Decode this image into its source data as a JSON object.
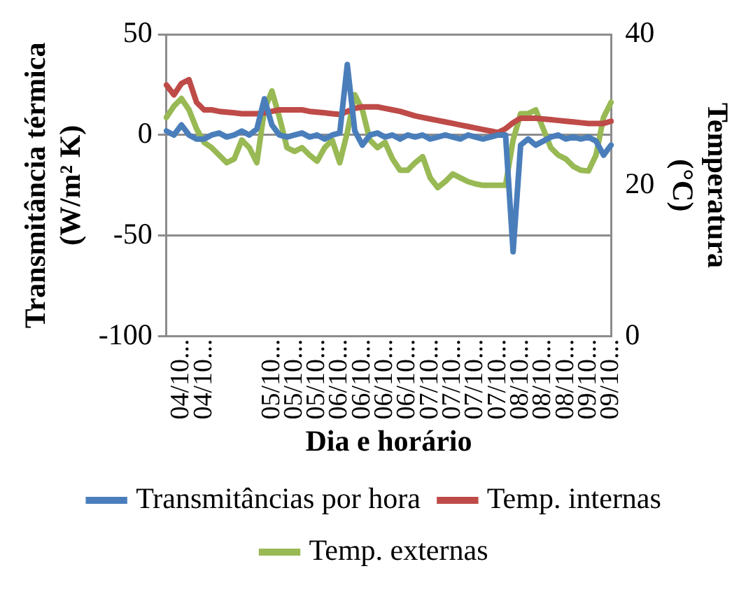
{
  "chart_data": {
    "type": "line",
    "xlabel": "Dia e horário",
    "ylabel": "Transmitância térmica (W/m² K)",
    "y2label": "Temperatura (°C)",
    "categories": [
      null,
      null,
      "04/10...",
      null,
      null,
      "04/10...",
      null,
      null,
      null,
      null,
      null,
      null,
      null,
      null,
      "05/10...",
      null,
      null,
      "05/10...",
      null,
      null,
      "05/10...",
      null,
      null,
      "06/10...",
      null,
      null,
      "06/10...",
      null,
      null,
      "06/10...",
      null,
      null,
      "06/10...",
      null,
      null,
      "07/10...",
      null,
      null,
      "07/10...",
      null,
      null,
      "07/10...",
      null,
      null,
      "07/10...",
      null,
      null,
      "08/10...",
      null,
      null,
      "08/10...",
      null,
      null,
      "08/10...",
      null,
      null,
      "09/10...",
      null,
      null,
      "09/10..."
    ],
    "series": [
      {
        "name": "Transmitâncias por hora",
        "color": "#4a7ebb",
        "values": [
          2,
          0,
          5,
          0,
          -2,
          -2,
          0,
          1,
          -1,
          0,
          2,
          0,
          3,
          18,
          5,
          0,
          -1,
          0,
          1,
          -1,
          0,
          -2,
          0,
          1,
          35,
          2,
          -5,
          0,
          1,
          -1,
          0,
          -2,
          0,
          -1,
          0,
          -2,
          -1,
          0,
          -1,
          -2,
          0,
          -1,
          -2,
          -1,
          0,
          0,
          -58,
          -5,
          -2,
          -5,
          -3,
          -1,
          0,
          -2,
          -1,
          -2,
          -1,
          -3,
          -10,
          -5
        ]
      },
      {
        "name": "Temp. internas",
        "color": "#be4b48",
        "axis": "y2",
        "values": [
          33.3,
          32,
          33.5,
          34,
          31,
          30,
          30,
          29.8,
          29.7,
          29.6,
          29.5,
          29.5,
          29.5,
          29.6,
          29.8,
          30,
          30,
          30,
          30,
          29.8,
          29.7,
          29.6,
          29.5,
          29.4,
          29.8,
          30.2,
          30.4,
          30.4,
          30.4,
          30.2,
          30,
          29.8,
          29.5,
          29.2,
          29,
          28.8,
          28.6,
          28.4,
          28.2,
          28,
          27.8,
          27.6,
          27.4,
          27.2,
          27,
          27.5,
          28.3,
          28.9,
          28.9,
          28.9,
          28.8,
          28.7,
          28.6,
          28.5,
          28.4,
          28.3,
          28.2,
          28.2,
          28.2,
          28.5
        ]
      },
      {
        "name": "Temp. externas",
        "color": "#98b954",
        "axis": "y2",
        "values": [
          29,
          30.5,
          31.5,
          30,
          27.5,
          25.7,
          25,
          24,
          23,
          23.5,
          26,
          25,
          23,
          30,
          32.5,
          29,
          25,
          24.5,
          25,
          24,
          23.2,
          25,
          26,
          23,
          27,
          32,
          30,
          26,
          25,
          25.7,
          23.5,
          22,
          22,
          23,
          23.8,
          21,
          19.7,
          20.5,
          21.5,
          21,
          20.5,
          20.2,
          20,
          20,
          20,
          20,
          26,
          29.5,
          29.5,
          30,
          27.5,
          25,
          24,
          23.5,
          22.5,
          22,
          21.9,
          24,
          29,
          31
        ]
      }
    ],
    "ylim": [
      -100,
      50
    ],
    "yticks": [
      -100,
      -50,
      0,
      50
    ],
    "y2lim": [
      0,
      40
    ],
    "y2ticks": [
      0,
      20,
      40
    ],
    "grid": "y",
    "legend": "bottom",
    "marker": "none",
    "line_style": "solid"
  }
}
